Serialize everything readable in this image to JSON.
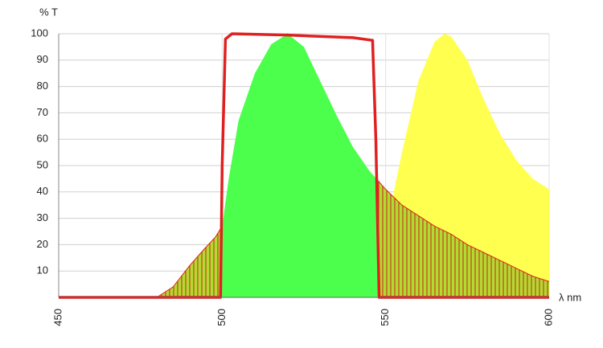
{
  "chart_data": {
    "type": "spectrum",
    "y_label": "% T",
    "x_label": "λ nm",
    "xlim": [
      450,
      600
    ],
    "ylim": [
      0,
      100
    ],
    "xticks": [
      450,
      500,
      550,
      600
    ],
    "yticks": [
      10,
      20,
      30,
      40,
      50,
      60,
      70,
      80,
      90,
      100
    ],
    "grid": true,
    "series": [
      {
        "kind": "area",
        "color": "#ffff50",
        "x": [
          535,
          540,
          545,
          550,
          555,
          560,
          565,
          568,
          570,
          575,
          580,
          585,
          590,
          595,
          600
        ],
        "values": [
          0,
          3,
          10,
          25,
          55,
          82,
          97,
          100,
          99,
          90,
          75,
          62,
          52,
          45,
          41
        ]
      },
      {
        "kind": "area",
        "color": "#4cff4c",
        "hatch_color": "#b0dc30",
        "x": [
          480,
          485,
          490,
          495,
          498,
          500,
          502,
          505,
          510,
          515,
          520,
          525,
          530,
          535,
          540,
          545,
          550,
          555,
          560,
          565,
          570,
          575,
          580,
          585,
          590,
          595,
          600
        ],
        "values": [
          0,
          4,
          12,
          19,
          23,
          27,
          45,
          67,
          85,
          96,
          100,
          95,
          82,
          69,
          57,
          48,
          41,
          35,
          31,
          27,
          24,
          20,
          17,
          14,
          11,
          8,
          6
        ]
      },
      {
        "kind": "line",
        "color": "#e02020",
        "x": [
          450,
          499.5,
          500,
          501,
          503,
          520,
          540,
          546,
          547,
          548,
          600
        ],
        "values": [
          0,
          0,
          50,
          98,
          100,
          99.5,
          98.5,
          97.5,
          60,
          0,
          0
        ]
      }
    ]
  }
}
